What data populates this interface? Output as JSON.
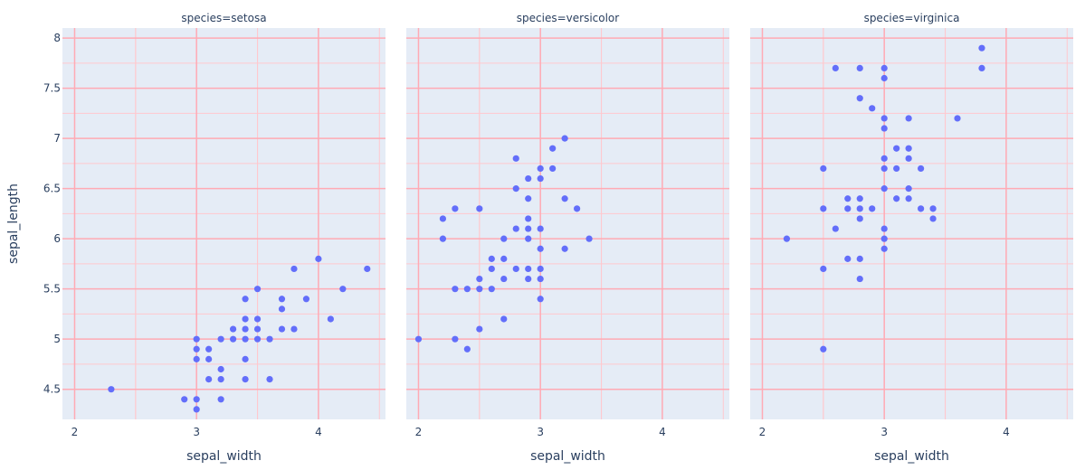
{
  "chart_data": {
    "type": "scatter",
    "xlabel": "sepal_width",
    "ylabel": "sepal_length",
    "xlim": [
      1.9,
      4.55
    ],
    "ylim": [
      4.2,
      8.1
    ],
    "x_ticks": [
      2,
      3,
      4
    ],
    "x_tick_labels": [
      "2",
      "3",
      "4"
    ],
    "y_ticks": [
      4.5,
      5,
      5.5,
      6,
      6.5,
      7,
      7.5,
      8
    ],
    "y_tick_labels": [
      "4.5",
      "5",
      "5.5",
      "6",
      "6.5",
      "7",
      "7.5",
      "8"
    ],
    "marker_color": "#636efa",
    "facets": [
      {
        "title": "species=setosa",
        "points": [
          [
            2.3,
            4.5
          ],
          [
            2.9,
            4.4
          ],
          [
            3.0,
            4.4
          ],
          [
            3.0,
            4.3
          ],
          [
            3.0,
            4.8
          ],
          [
            3.0,
            4.9
          ],
          [
            3.0,
            5.0
          ],
          [
            3.1,
            4.9
          ],
          [
            3.1,
            4.8
          ],
          [
            3.1,
            4.6
          ],
          [
            3.2,
            4.4
          ],
          [
            3.2,
            4.6
          ],
          [
            3.2,
            4.7
          ],
          [
            3.2,
            5.0
          ],
          [
            3.3,
            5.0
          ],
          [
            3.3,
            5.1
          ],
          [
            3.4,
            4.6
          ],
          [
            3.4,
            4.8
          ],
          [
            3.4,
            5.0
          ],
          [
            3.4,
            5.1
          ],
          [
            3.4,
            5.2
          ],
          [
            3.4,
            5.4
          ],
          [
            3.5,
            5.0
          ],
          [
            3.5,
            5.1
          ],
          [
            3.5,
            5.2
          ],
          [
            3.5,
            5.5
          ],
          [
            3.6,
            4.6
          ],
          [
            3.6,
            5.0
          ],
          [
            3.7,
            5.1
          ],
          [
            3.7,
            5.3
          ],
          [
            3.7,
            5.4
          ],
          [
            3.8,
            5.1
          ],
          [
            3.8,
            5.7
          ],
          [
            3.9,
            5.4
          ],
          [
            4.0,
            5.8
          ],
          [
            4.1,
            5.2
          ],
          [
            4.2,
            5.5
          ],
          [
            4.4,
            5.7
          ]
        ]
      },
      {
        "title": "species=versicolor",
        "points": [
          [
            2.0,
            5.0
          ],
          [
            2.2,
            6.0
          ],
          [
            2.2,
            6.2
          ],
          [
            2.3,
            5.0
          ],
          [
            2.3,
            5.5
          ],
          [
            2.3,
            6.3
          ],
          [
            2.4,
            4.9
          ],
          [
            2.4,
            5.5
          ],
          [
            2.5,
            5.1
          ],
          [
            2.5,
            5.5
          ],
          [
            2.5,
            5.6
          ],
          [
            2.5,
            6.3
          ],
          [
            2.6,
            5.5
          ],
          [
            2.6,
            5.7
          ],
          [
            2.6,
            5.8
          ],
          [
            2.7,
            5.2
          ],
          [
            2.7,
            5.6
          ],
          [
            2.7,
            5.8
          ],
          [
            2.7,
            6.0
          ],
          [
            2.8,
            5.7
          ],
          [
            2.8,
            6.1
          ],
          [
            2.8,
            6.5
          ],
          [
            2.8,
            6.8
          ],
          [
            2.9,
            5.6
          ],
          [
            2.9,
            5.7
          ],
          [
            2.9,
            6.0
          ],
          [
            2.9,
            6.1
          ],
          [
            2.9,
            6.2
          ],
          [
            2.9,
            6.4
          ],
          [
            2.9,
            6.6
          ],
          [
            3.0,
            5.4
          ],
          [
            3.0,
            5.6
          ],
          [
            3.0,
            5.7
          ],
          [
            3.0,
            5.9
          ],
          [
            3.0,
            6.1
          ],
          [
            3.0,
            6.6
          ],
          [
            3.0,
            6.7
          ],
          [
            3.1,
            6.7
          ],
          [
            3.1,
            6.9
          ],
          [
            3.2,
            5.9
          ],
          [
            3.2,
            6.4
          ],
          [
            3.2,
            7.0
          ],
          [
            3.3,
            6.3
          ],
          [
            3.4,
            6.0
          ]
        ]
      },
      {
        "title": "species=virginica",
        "points": [
          [
            2.2,
            6.0
          ],
          [
            2.5,
            4.9
          ],
          [
            2.5,
            5.7
          ],
          [
            2.5,
            6.3
          ],
          [
            2.5,
            6.7
          ],
          [
            2.6,
            6.1
          ],
          [
            2.6,
            7.7
          ],
          [
            2.7,
            5.8
          ],
          [
            2.7,
            6.3
          ],
          [
            2.7,
            6.4
          ],
          [
            2.8,
            5.6
          ],
          [
            2.8,
            5.8
          ],
          [
            2.8,
            6.2
          ],
          [
            2.8,
            6.3
          ],
          [
            2.8,
            6.4
          ],
          [
            2.8,
            7.4
          ],
          [
            2.8,
            7.7
          ],
          [
            2.9,
            6.3
          ],
          [
            2.9,
            7.3
          ],
          [
            3.0,
            5.9
          ],
          [
            3.0,
            6.0
          ],
          [
            3.0,
            6.1
          ],
          [
            3.0,
            6.5
          ],
          [
            3.0,
            6.7
          ],
          [
            3.0,
            6.8
          ],
          [
            3.0,
            7.1
          ],
          [
            3.0,
            7.2
          ],
          [
            3.0,
            7.6
          ],
          [
            3.0,
            7.7
          ],
          [
            3.1,
            6.4
          ],
          [
            3.1,
            6.7
          ],
          [
            3.1,
            6.9
          ],
          [
            3.2,
            6.4
          ],
          [
            3.2,
            6.5
          ],
          [
            3.2,
            6.8
          ],
          [
            3.2,
            6.9
          ],
          [
            3.2,
            7.2
          ],
          [
            3.3,
            6.3
          ],
          [
            3.3,
            6.7
          ],
          [
            3.4,
            6.2
          ],
          [
            3.4,
            6.3
          ],
          [
            3.6,
            7.2
          ],
          [
            3.8,
            7.7
          ],
          [
            3.8,
            7.9
          ]
        ]
      }
    ]
  }
}
